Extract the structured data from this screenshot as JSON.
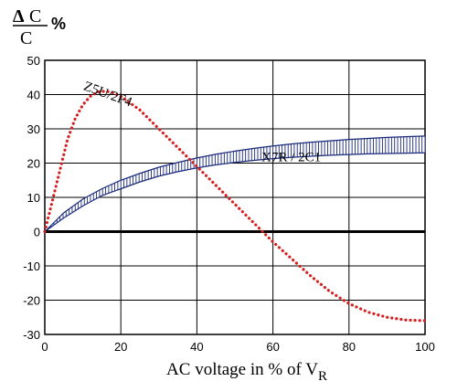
{
  "chart_data": {
    "type": "line",
    "yaxis_title": {
      "numerator_symbol": "Δ",
      "numerator_letter": "C",
      "denominator": "C",
      "unit": "%"
    },
    "xlabel_prefix": "AC voltage in % of V",
    "xlabel_subscript": "R",
    "xlim": [
      0,
      100
    ],
    "ylim": [
      -30,
      50
    ],
    "x_ticks": [
      "0",
      "20",
      "40",
      "60",
      "80",
      "100"
    ],
    "y_ticks": [
      "50",
      "40",
      "30",
      "20",
      "10",
      "0",
      "-10",
      "-20",
      "-30"
    ],
    "x_tick_values": [
      0,
      20,
      40,
      60,
      80,
      100
    ],
    "y_tick_values": [
      50,
      40,
      30,
      20,
      10,
      0,
      -10,
      -20,
      -30
    ],
    "grid": true,
    "zero_line": true,
    "series": [
      {
        "name": "Z5U/2F4",
        "style": "dotted",
        "color": "#d42020",
        "x": [
          0,
          2,
          4,
          6,
          8,
          10,
          12,
          14,
          16,
          18,
          20,
          25,
          30,
          35,
          40,
          45,
          50,
          55,
          60,
          65,
          70,
          75,
          80,
          85,
          90,
          95,
          100
        ],
        "y": [
          0,
          9,
          18,
          27,
          33,
          37,
          39.5,
          40.8,
          41,
          40.5,
          39.5,
          35.5,
          30,
          24.5,
          19,
          13.5,
          8,
          2.5,
          -3,
          -8,
          -13,
          -17.5,
          -21,
          -23.5,
          -25,
          -25.8,
          -26
        ]
      },
      {
        "name": "X7R / 2C1",
        "style": "hatched band",
        "color": "#1a2a7a",
        "x": [
          0,
          5,
          10,
          15,
          20,
          25,
          30,
          35,
          40,
          45,
          50,
          55,
          60,
          65,
          70,
          75,
          80,
          85,
          90,
          95,
          100
        ],
        "upper": [
          0,
          5.5,
          9.5,
          12.5,
          15,
          17,
          18.8,
          20.2,
          21.5,
          22.6,
          23.5,
          24.3,
          25,
          25.6,
          26.1,
          26.5,
          26.9,
          27.2,
          27.5,
          27.7,
          27.9
        ],
        "lower": [
          0,
          4,
          7.5,
          10.5,
          12.5,
          14.5,
          16.2,
          17.5,
          18.6,
          19.5,
          20.2,
          20.8,
          21.3,
          21.7,
          22,
          22.3,
          22.5,
          22.7,
          22.8,
          22.9,
          23
        ]
      }
    ]
  }
}
